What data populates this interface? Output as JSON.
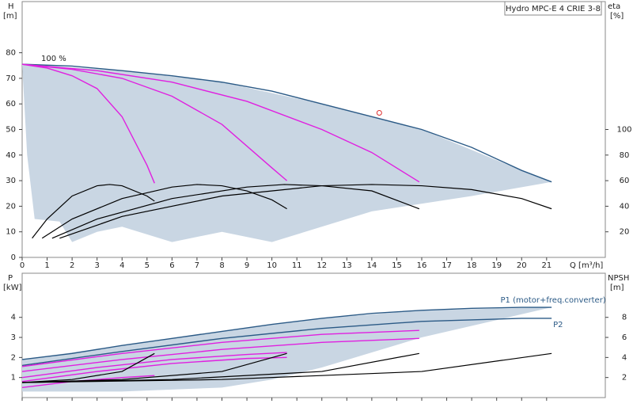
{
  "chart_data": [
    {
      "type": "line",
      "title": "Hydro MPC-E 4 CRIE 3-8",
      "y_label": "H",
      "y_unit": "[m]",
      "y2_label": "eta",
      "y2_unit": "[%]",
      "x_label": "Q [m³/h]",
      "xlim": [
        0,
        23.35
      ],
      "xticks": [
        0,
        1,
        2,
        3,
        4,
        5,
        6,
        7,
        8,
        9,
        10,
        11,
        12,
        13,
        14,
        15,
        16,
        17,
        18,
        19,
        20,
        21
      ],
      "ylim": [
        0,
        100
      ],
      "yticks": [
        0,
        10,
        20,
        30,
        40,
        50,
        60,
        70,
        80
      ],
      "y2lim": [
        0,
        200
      ],
      "y2ticks": [
        20,
        40,
        60,
        80,
        100
      ],
      "area": {
        "color": "#c9d6e3",
        "x": [
          0,
          4,
          8,
          12,
          16,
          20,
          21.2,
          18,
          14,
          10,
          8,
          6,
          4,
          3,
          2,
          1.5,
          0.5,
          0.2
        ],
        "values": [
          75.5,
          73,
          68.5,
          60,
          50,
          34,
          29.5,
          24,
          18,
          6,
          10,
          6,
          12,
          10,
          6,
          14,
          15,
          40
        ]
      },
      "annotations": [
        "100 %"
      ],
      "marker": {
        "x": 14.3,
        "y": 56.5,
        "color": "#e03030"
      },
      "series": [
        {
          "color": "#2b5a86",
          "x": [
            0,
            2,
            4,
            6,
            8,
            10,
            12,
            14,
            16,
            18,
            20,
            21.2
          ],
          "values": [
            75.5,
            74.8,
            73,
            71,
            68.5,
            65,
            60,
            55,
            50,
            43,
            34,
            29.5
          ]
        },
        {
          "color": "#e020e0",
          "x": [
            0,
            1,
            2,
            3,
            4,
            5,
            5.3
          ],
          "values": [
            75.5,
            74,
            71,
            66,
            55,
            36,
            29
          ]
        },
        {
          "color": "#e020e0",
          "x": [
            0,
            2,
            4,
            6,
            8,
            10,
            10.6
          ],
          "values": [
            75.5,
            73.5,
            70,
            63,
            52,
            35,
            30
          ]
        },
        {
          "color": "#e020e0",
          "x": [
            0,
            3,
            6,
            9,
            12,
            14,
            15.9
          ],
          "values": [
            75.5,
            73,
            68.5,
            61,
            50,
            41,
            29.5
          ]
        },
        {
          "color": "#000000",
          "axis": "y2",
          "x": [
            0.4,
            1,
            2,
            3,
            3.5,
            4,
            5,
            5.3
          ],
          "values": [
            15,
            30,
            48,
            56,
            57,
            56,
            48,
            44
          ]
        },
        {
          "color": "#000000",
          "axis": "y2",
          "x": [
            0.8,
            2,
            4,
            6,
            7,
            8,
            9,
            10,
            10.6
          ],
          "values": [
            15,
            30,
            46,
            55,
            57,
            56,
            52,
            45,
            38
          ]
        },
        {
          "color": "#000000",
          "axis": "y2",
          "x": [
            1.2,
            3,
            6,
            9,
            10.5,
            12,
            14,
            15.9
          ],
          "values": [
            15,
            30,
            46,
            55,
            57,
            56,
            52,
            38
          ]
        },
        {
          "color": "#000000",
          "axis": "y2",
          "x": [
            1.5,
            4,
            8,
            12,
            14,
            16,
            18,
            20,
            21.2
          ],
          "values": [
            15,
            32,
            48,
            56,
            57,
            56,
            53,
            46,
            38
          ]
        }
      ]
    },
    {
      "type": "line",
      "y_label": "P",
      "y_unit": "[kW]",
      "y2_label": "NPSH",
      "y2_unit": "[m]",
      "xlim": [
        0,
        23.35
      ],
      "xticks": [
        0,
        1,
        2,
        3,
        4,
        5,
        6,
        7,
        8,
        9,
        10,
        11,
        12,
        13,
        14,
        15,
        16,
        17,
        18,
        19,
        20,
        21
      ],
      "ylim": [
        0,
        6.2
      ],
      "yticks": [
        1,
        2,
        3,
        4
      ],
      "y2lim": [
        0,
        12.4
      ],
      "y2ticks": [
        2,
        4,
        6,
        8
      ],
      "area": {
        "color": "#c9d6e3",
        "x": [
          0,
          4,
          8,
          12,
          16,
          21.2,
          16,
          12,
          10,
          8,
          4,
          0
        ],
        "values": [
          1.9,
          2.6,
          3.3,
          3.95,
          4.35,
          4.5,
          3,
          1.5,
          0.9,
          0.5,
          0.3,
          0.3
        ]
      },
      "series": [
        {
          "name": "P1 (motor+freq.converter)",
          "color": "#2b5a86",
          "x": [
            0,
            2,
            4,
            6,
            8,
            10,
            12,
            14,
            16,
            18,
            20,
            21.2
          ],
          "values": [
            1.9,
            2.2,
            2.6,
            2.95,
            3.3,
            3.65,
            3.95,
            4.2,
            4.35,
            4.45,
            4.5,
            4.5
          ]
        },
        {
          "name": "P2",
          "color": "#2b5a86",
          "x": [
            0,
            4,
            8,
            12,
            16,
            20,
            21.2
          ],
          "values": [
            1.6,
            2.3,
            2.95,
            3.45,
            3.8,
            3.95,
            3.95
          ]
        },
        {
          "color": "#e020e0",
          "x": [
            0,
            4,
            8,
            12,
            15.9
          ],
          "values": [
            1.55,
            2.2,
            2.75,
            3.15,
            3.35
          ]
        },
        {
          "color": "#e020e0",
          "x": [
            0,
            4,
            8,
            12,
            15.9
          ],
          "values": [
            1.3,
            1.9,
            2.4,
            2.75,
            2.95
          ]
        },
        {
          "color": "#e020e0",
          "x": [
            0,
            3,
            6,
            9,
            10.6
          ],
          "values": [
            1.0,
            1.5,
            1.9,
            2.15,
            2.25
          ]
        },
        {
          "color": "#e020e0",
          "x": [
            0,
            3,
            6,
            9,
            10.6
          ],
          "values": [
            0.8,
            1.3,
            1.7,
            1.95,
            2.0
          ]
        },
        {
          "color": "#e020e0",
          "x": [
            0,
            2,
            4,
            5.3
          ],
          "values": [
            0.5,
            0.8,
            1.0,
            1.1
          ]
        },
        {
          "color": "#000000",
          "axis": "y2",
          "x": [
            0,
            2,
            4,
            5.3
          ],
          "values": [
            1.5,
            1.8,
            2.6,
            4.4
          ]
        },
        {
          "color": "#000000",
          "axis": "y2",
          "x": [
            0,
            4,
            8,
            10.6
          ],
          "values": [
            1.5,
            1.8,
            2.6,
            4.4
          ]
        },
        {
          "color": "#000000",
          "axis": "y2",
          "x": [
            0,
            6,
            12,
            15.9
          ],
          "values": [
            1.5,
            1.8,
            2.6,
            4.4
          ]
        },
        {
          "color": "#000000",
          "axis": "y2",
          "x": [
            0,
            8,
            16,
            21.2
          ],
          "values": [
            1.5,
            1.8,
            2.6,
            4.4
          ]
        }
      ]
    }
  ]
}
